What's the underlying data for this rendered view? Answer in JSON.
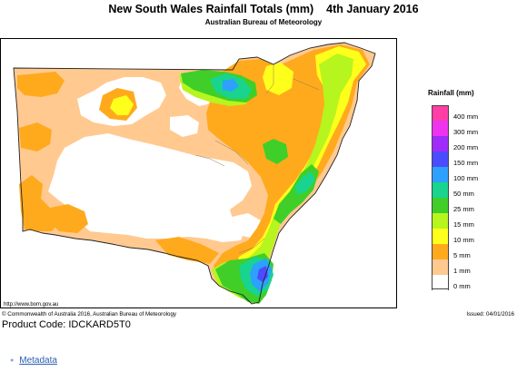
{
  "map": {
    "title": "New South Wales Rainfall Totals (mm)",
    "date": "4th January 2016",
    "subtitle": "Australian Bureau of Meteorology",
    "source_url": "http://www.bom.gov.au",
    "copyright": "© Commonwealth of Australia 2016, Australian Bureau of Meteorology",
    "issued": "Issued: 04/01/2016"
  },
  "legend": {
    "title": "Rainfall (mm)",
    "items": [
      {
        "label": "400 mm",
        "color": "#ff3ea6"
      },
      {
        "label": "300 mm",
        "color": "#ee33ee"
      },
      {
        "label": "200 mm",
        "color": "#9f2cfb"
      },
      {
        "label": "150 mm",
        "color": "#4b4bff"
      },
      {
        "label": "100 mm",
        "color": "#2ea0ff"
      },
      {
        "label": "50 mm",
        "color": "#18d48e"
      },
      {
        "label": "25 mm",
        "color": "#3fcf28"
      },
      {
        "label": "15 mm",
        "color": "#b6f51d"
      },
      {
        "label": "10 mm",
        "color": "#ffff1c"
      },
      {
        "label": "5 mm",
        "color": "#ffaa1d"
      },
      {
        "label": "1 mm",
        "color": "#ffc990"
      },
      {
        "label": "0 mm",
        "color": "#ffffff"
      }
    ]
  },
  "page": {
    "product_code": "Product Code: IDCKARD5T0",
    "metadata_link": "Metadata"
  }
}
